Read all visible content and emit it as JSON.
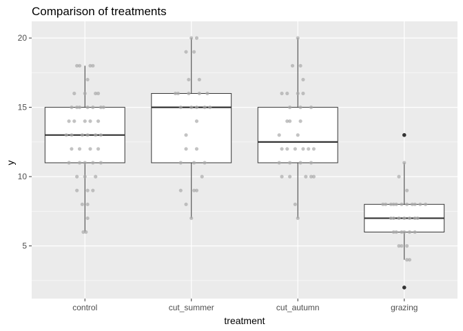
{
  "chart_data": {
    "type": "boxplot",
    "title": "Comparison of treatments",
    "xlabel": "treatment",
    "ylabel": "y",
    "categories": [
      "control",
      "cut_summer",
      "cut_autumn",
      "grazing"
    ],
    "ylim": [
      1.2,
      21.2
    ],
    "yticks": [
      5,
      10,
      15,
      20
    ],
    "grid": true,
    "colors": {
      "panel": "#ebebeb",
      "grid": "#ffffff",
      "box_fill": "#ffffff",
      "box_line": "#333333",
      "jitter_points": "#aaaaaa",
      "outlier_points": "#333333"
    },
    "boxes": [
      {
        "category": "control",
        "min": 6,
        "q1": 11,
        "median": 13,
        "q3": 15,
        "max": 18,
        "outliers": []
      },
      {
        "category": "cut_summer",
        "min": 7,
        "q1": 11,
        "median": 15,
        "q3": 16,
        "max": 20,
        "outliers": []
      },
      {
        "category": "cut_autumn",
        "min": 7,
        "q1": 11,
        "median": 12.5,
        "q3": 15,
        "max": 20,
        "outliers": []
      },
      {
        "category": "grazing",
        "min": 4,
        "q1": 6,
        "median": 7,
        "q3": 8,
        "max": 11,
        "outliers": [
          13,
          2
        ]
      }
    ],
    "jitter": [
      {
        "category": "control",
        "points": [
          [
            -0.15,
            18
          ],
          [
            -0.1,
            18
          ],
          [
            0.1,
            18
          ],
          [
            0.15,
            18
          ],
          [
            0.05,
            17
          ],
          [
            -0.2,
            16
          ],
          [
            0,
            16
          ],
          [
            0.2,
            16
          ],
          [
            0.25,
            16
          ],
          [
            -0.25,
            15
          ],
          [
            -0.15,
            15
          ],
          [
            -0.1,
            15
          ],
          [
            0.05,
            15
          ],
          [
            0.15,
            15
          ],
          [
            0.3,
            15
          ],
          [
            0.35,
            15
          ],
          [
            -0.3,
            14
          ],
          [
            -0.2,
            14
          ],
          [
            0,
            14
          ],
          [
            0.1,
            14
          ],
          [
            0.25,
            14
          ],
          [
            -0.35,
            13
          ],
          [
            -0.25,
            13
          ],
          [
            -0.05,
            13
          ],
          [
            0.05,
            13
          ],
          [
            0.2,
            13
          ],
          [
            0.3,
            13
          ],
          [
            -0.25,
            12
          ],
          [
            -0.1,
            12
          ],
          [
            0.1,
            12
          ],
          [
            0.25,
            12
          ],
          [
            -0.3,
            11
          ],
          [
            -0.1,
            11
          ],
          [
            0,
            11
          ],
          [
            0.15,
            11
          ],
          [
            0.3,
            11
          ],
          [
            -0.15,
            10
          ],
          [
            0,
            10
          ],
          [
            0.2,
            10
          ],
          [
            -0.15,
            9
          ],
          [
            0.05,
            9
          ],
          [
            0.15,
            9
          ],
          [
            -0.05,
            8
          ],
          [
            0.05,
            8
          ],
          [
            0.05,
            7
          ],
          [
            -0.03,
            6
          ],
          [
            0.02,
            6
          ]
        ]
      },
      {
        "category": "cut_summer",
        "points": [
          [
            0,
            20
          ],
          [
            0.1,
            20
          ],
          [
            -0.1,
            19
          ],
          [
            0.05,
            19
          ],
          [
            -0.05,
            17
          ],
          [
            0.15,
            17
          ],
          [
            -0.3,
            16
          ],
          [
            -0.25,
            16
          ],
          [
            -0.05,
            16
          ],
          [
            0.15,
            16
          ],
          [
            0.3,
            16
          ],
          [
            -0.2,
            15
          ],
          [
            0,
            15
          ],
          [
            0.1,
            15
          ],
          [
            0.25,
            15
          ],
          [
            0.35,
            15
          ],
          [
            0.1,
            14
          ],
          [
            -0.1,
            13
          ],
          [
            -0.1,
            12
          ],
          [
            0.1,
            12
          ],
          [
            -0.2,
            11
          ],
          [
            0.05,
            11
          ],
          [
            0.25,
            11
          ],
          [
            0.2,
            10
          ],
          [
            -0.2,
            9
          ],
          [
            0.05,
            9
          ],
          [
            0.1,
            9
          ],
          [
            -0.1,
            8
          ],
          [
            0,
            7
          ]
        ]
      },
      {
        "category": "cut_autumn",
        "points": [
          [
            0,
            20
          ],
          [
            -0.1,
            18
          ],
          [
            0.05,
            18
          ],
          [
            0.1,
            17
          ],
          [
            -0.3,
            16
          ],
          [
            -0.2,
            16
          ],
          [
            0,
            16
          ],
          [
            0.1,
            16
          ],
          [
            -0.15,
            15
          ],
          [
            0.05,
            15
          ],
          [
            0.25,
            15
          ],
          [
            -0.2,
            14
          ],
          [
            -0.15,
            14
          ],
          [
            0.05,
            14
          ],
          [
            -0.35,
            13
          ],
          [
            0,
            13
          ],
          [
            -0.3,
            12
          ],
          [
            -0.2,
            12
          ],
          [
            -0.05,
            12
          ],
          [
            0.1,
            12
          ],
          [
            0.2,
            12
          ],
          [
            0.3,
            12
          ],
          [
            -0.35,
            11
          ],
          [
            -0.15,
            11
          ],
          [
            0.05,
            11
          ],
          [
            0.25,
            11
          ],
          [
            -0.3,
            10
          ],
          [
            -0.15,
            10
          ],
          [
            0.15,
            10
          ],
          [
            0.25,
            10
          ],
          [
            0.3,
            10
          ],
          [
            -0.05,
            8
          ],
          [
            0,
            7
          ]
        ]
      },
      {
        "category": "grazing",
        "points": [
          [
            0,
            13
          ],
          [
            0,
            11
          ],
          [
            -0.1,
            10
          ],
          [
            0.05,
            9
          ],
          [
            -0.4,
            8
          ],
          [
            -0.35,
            8
          ],
          [
            -0.25,
            8
          ],
          [
            -0.2,
            8
          ],
          [
            -0.15,
            8
          ],
          [
            -0.05,
            8
          ],
          [
            0.05,
            8
          ],
          [
            0.15,
            8
          ],
          [
            0.2,
            8
          ],
          [
            0.3,
            8
          ],
          [
            0.4,
            8
          ],
          [
            -0.25,
            7
          ],
          [
            -0.2,
            7
          ],
          [
            -0.1,
            7
          ],
          [
            0,
            7
          ],
          [
            0.1,
            7
          ],
          [
            0.2,
            7
          ],
          [
            0.25,
            7
          ],
          [
            -0.2,
            6
          ],
          [
            -0.15,
            6
          ],
          [
            -0.05,
            6
          ],
          [
            0,
            6
          ],
          [
            0.1,
            6
          ],
          [
            0.2,
            6
          ],
          [
            -0.1,
            5
          ],
          [
            -0.05,
            5
          ],
          [
            0.05,
            5
          ],
          [
            0.05,
            4
          ],
          [
            0.1,
            4
          ],
          [
            0,
            2
          ]
        ]
      }
    ]
  }
}
